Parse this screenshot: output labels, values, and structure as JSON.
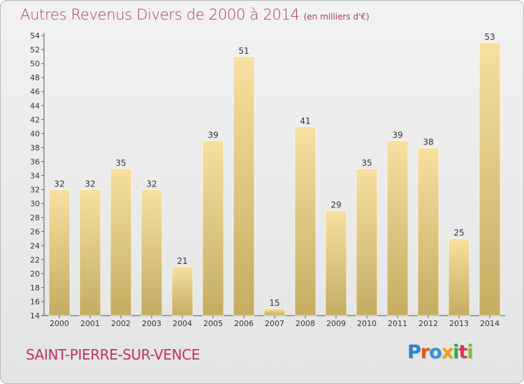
{
  "header": {
    "title": "Autres Revenus Divers de 2000 à 2014",
    "unit": "(en milliers d'€)"
  },
  "footer": {
    "commune": "SAINT-PIERRE-SUR-VENCE",
    "logo_text": "Proxiti",
    "logo_colors": [
      "#2f7fd0",
      "#e0591b",
      "#3a8fd8",
      "#f1a20d",
      "#3aa63a",
      "#d8365b",
      "#7db83a"
    ]
  },
  "colors": {
    "title": "#a83a62",
    "commune": "#c0325f",
    "bar_top": "#f7e0a0",
    "bar_bottom": "#c4ad62"
  },
  "chart_data": {
    "type": "bar",
    "categories": [
      "2000",
      "2001",
      "2002",
      "2003",
      "2004",
      "2005",
      "2006",
      "2007",
      "2008",
      "2009",
      "2010",
      "2011",
      "2012",
      "2013",
      "2014"
    ],
    "values": [
      32,
      32,
      35,
      32,
      21,
      39,
      51,
      15,
      41,
      29,
      35,
      39,
      38,
      25,
      53
    ],
    "ylim": [
      14,
      54
    ],
    "yticks": [
      14,
      16,
      18,
      20,
      22,
      24,
      26,
      28,
      30,
      32,
      34,
      36,
      38,
      40,
      42,
      44,
      46,
      48,
      50,
      52,
      54
    ],
    "grid": false
  }
}
